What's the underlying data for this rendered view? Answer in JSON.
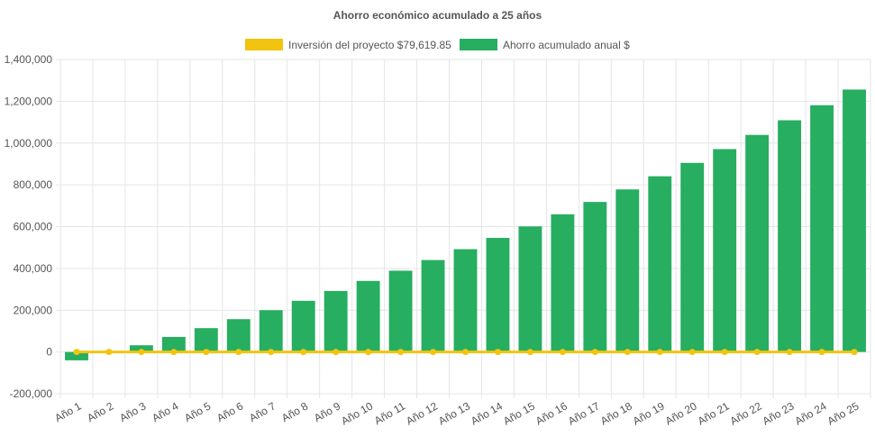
{
  "chart_data": {
    "type": "bar",
    "title": "Ahorro económico acumulado a 25 años",
    "categories": [
      "Año 1",
      "Año 2",
      "Año 3",
      "Año 4",
      "Año 5",
      "Año 6",
      "Año 7",
      "Año 8",
      "Año 9",
      "Año 10",
      "Año 11",
      "Año 12",
      "Año 13",
      "Año 14",
      "Año 15",
      "Año 16",
      "Año 17",
      "Año 18",
      "Año 19",
      "Año 20",
      "Año 21",
      "Año 22",
      "Año 23",
      "Año 24",
      "Año 25"
    ],
    "series": [
      {
        "name": "Inversión del proyecto $79,619.85",
        "type": "line",
        "color": "#f1c40f",
        "values": [
          0,
          0,
          0,
          0,
          0,
          0,
          0,
          0,
          0,
          0,
          0,
          0,
          0,
          0,
          0,
          0,
          0,
          0,
          0,
          0,
          0,
          0,
          0,
          0,
          0
        ]
      },
      {
        "name": "Ahorro acumulado anual $",
        "type": "bar",
        "color": "#27ae60",
        "values": [
          -40000,
          0,
          32000,
          72000,
          114000,
          157000,
          200000,
          245000,
          292000,
          340000,
          389000,
          440000,
          492000,
          546000,
          601000,
          659000,
          718000,
          778000,
          841000,
          905000,
          971000,
          1039000,
          1109000,
          1181000,
          1256000
        ]
      }
    ],
    "yticks": [
      "-200,000",
      "0",
      "200,000",
      "400,000",
      "600,000",
      "800,000",
      "1,000,000",
      "1,200,000",
      "1,400,000"
    ],
    "ylim": [
      -200000,
      1400000
    ],
    "grid": true,
    "legend_position": "top"
  }
}
